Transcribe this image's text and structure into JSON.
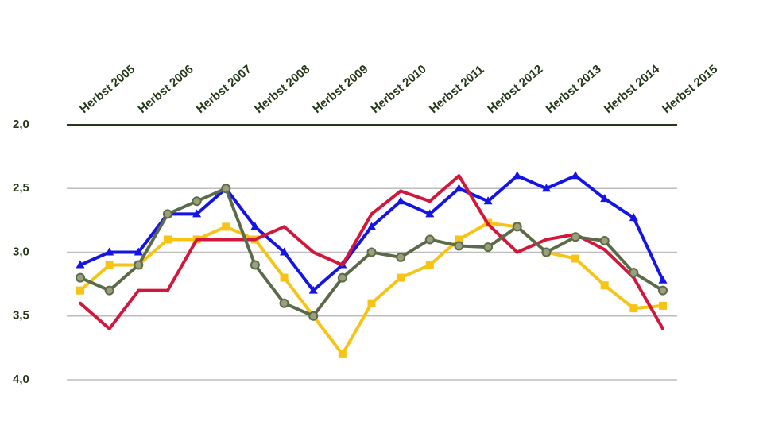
{
  "chart_data": {
    "type": "line",
    "categories": [
      "Herbst 2005",
      null,
      "Herbst 2006",
      null,
      "Herbst 2007",
      null,
      "Herbst 2008",
      null,
      "Herbst 2009",
      null,
      "Herbst 2010",
      null,
      "Herbst 2011",
      null,
      "Herbst 2012",
      null,
      "Herbst 2013",
      null,
      "Herbst 2014",
      null,
      "Herbst 2015"
    ],
    "ylim": [
      4,
      2
    ],
    "yticks": [
      {
        "value": 2,
        "label": "2,0"
      },
      {
        "value": 2.5,
        "label": "2,5"
      },
      {
        "value": 3,
        "label": "3,0"
      },
      {
        "value": 3.5,
        "label": "3,5"
      },
      {
        "value": 4,
        "label": "4,0"
      }
    ],
    "grid": true,
    "series": [
      {
        "name": null,
        "color": "#1414e6",
        "marker": "triangle",
        "values": [
          3.1,
          3.0,
          3.0,
          2.7,
          2.7,
          2.5,
          2.8,
          3.0,
          3.3,
          3.1,
          2.8,
          2.6,
          2.7,
          2.5,
          2.6,
          2.4,
          2.5,
          2.4,
          2.58,
          2.73,
          3.22
        ]
      },
      {
        "name": null,
        "color": "#f7c415",
        "marker": "square",
        "values": [
          3.3,
          3.1,
          3.1,
          2.9,
          2.9,
          2.8,
          2.9,
          3.2,
          3.5,
          3.8,
          3.4,
          3.2,
          3.1,
          2.9,
          2.77,
          2.8,
          3.0,
          3.05,
          3.26,
          3.44,
          3.42
        ]
      },
      {
        "name": null,
        "color": "#d3173c",
        "marker": "none",
        "values": [
          3.4,
          3.6,
          3.3,
          3.3,
          2.9,
          2.9,
          2.9,
          2.8,
          3.0,
          3.1,
          2.7,
          2.52,
          2.6,
          2.4,
          2.78,
          3.0,
          2.9,
          2.86,
          2.98,
          3.2,
          3.6
        ]
      },
      {
        "name": null,
        "color": "#5b6b4a",
        "marker": "circle",
        "values": [
          3.2,
          3.3,
          3.1,
          2.7,
          2.6,
          2.5,
          3.1,
          3.4,
          3.5,
          3.2,
          3.0,
          3.04,
          2.9,
          2.95,
          2.96,
          2.8,
          3.0,
          2.88,
          2.91,
          3.16,
          3.3
        ]
      }
    ]
  }
}
